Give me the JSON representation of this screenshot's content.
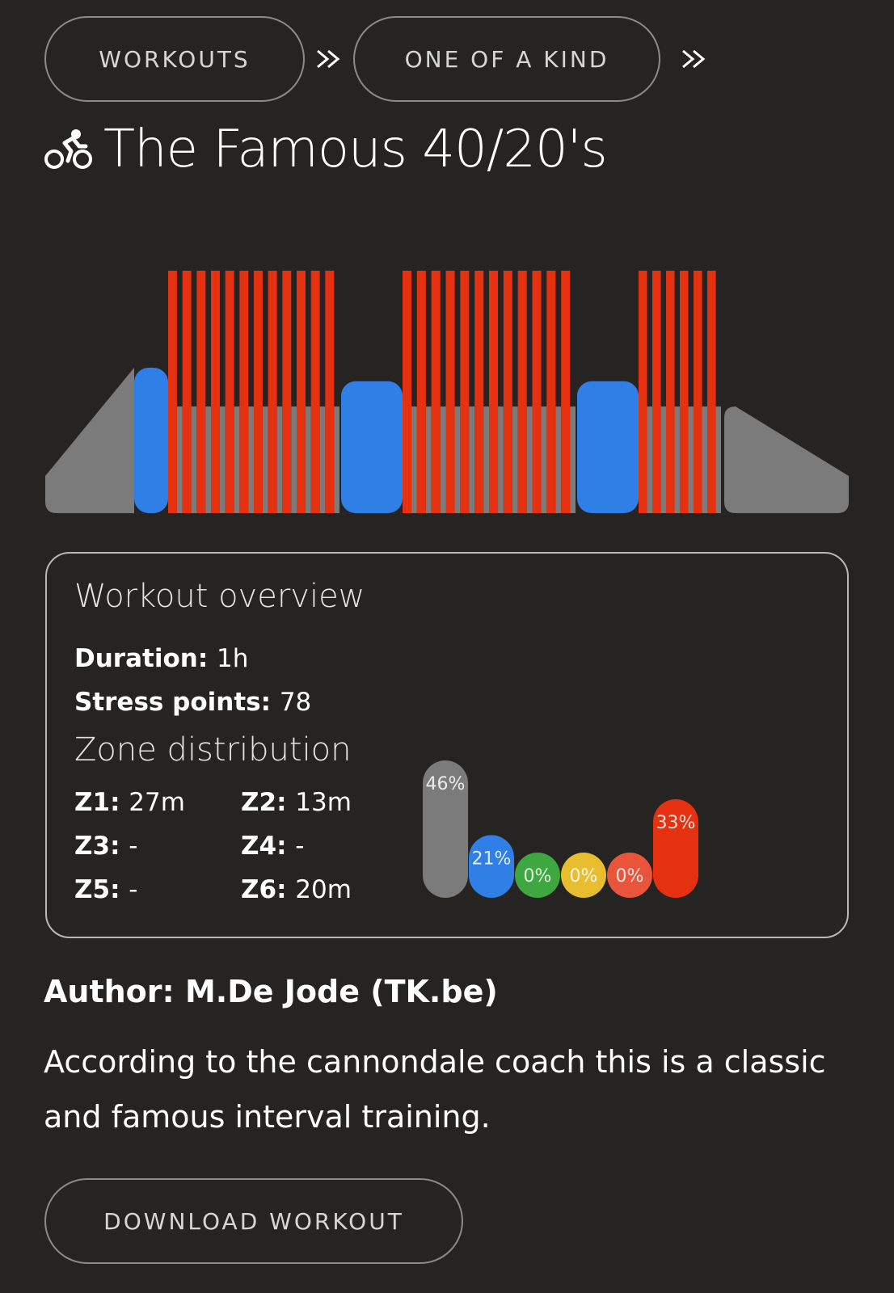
{
  "breadcrumb": {
    "items": [
      "WORKOUTS",
      "ONE OF A KIND"
    ],
    "separator_icon": "double-chevron-right-icon"
  },
  "title": {
    "icon": "cyclist-icon",
    "text": "The Famous 40/20's"
  },
  "profile": {
    "colors": {
      "z1": "#7b7b7b",
      "z2": "#2f7fe6",
      "z6": "#e5310f"
    },
    "segments": [
      {
        "type": "ramp",
        "zone": "z1",
        "from_power": 0.25,
        "to_power": 0.75
      },
      {
        "type": "block",
        "zone": "z2",
        "power": 0.75
      },
      {
        "type": "intervals",
        "repeats": 12,
        "on_zone": "z6",
        "on_power": 1.25,
        "off_zone": "z1",
        "off_power": 0.55
      },
      {
        "type": "block",
        "zone": "z2",
        "power": 0.68
      },
      {
        "type": "intervals",
        "repeats": 12,
        "on_zone": "z6",
        "on_power": 1.25,
        "off_zone": "z1",
        "off_power": 0.55
      },
      {
        "type": "block",
        "zone": "z2",
        "power": 0.68
      },
      {
        "type": "intervals",
        "repeats": 6,
        "on_zone": "z6",
        "on_power": 1.25,
        "off_zone": "z1",
        "off_power": 0.55
      },
      {
        "type": "ramp",
        "zone": "z1",
        "from_power": 0.55,
        "to_power": 0.25
      }
    ]
  },
  "overview": {
    "heading": "Workout overview",
    "duration_label": "Duration",
    "duration_value": "1h",
    "stress_label": "Stress points",
    "stress_value": "78",
    "zone_heading": "Zone distribution",
    "zones": [
      {
        "label": "Z1",
        "value": "27m"
      },
      {
        "label": "Z2",
        "value": "13m"
      },
      {
        "label": "Z3",
        "value": "-"
      },
      {
        "label": "Z4",
        "value": "-"
      },
      {
        "label": "Z5",
        "value": "-"
      },
      {
        "label": "Z6",
        "value": "20m"
      }
    ]
  },
  "chart_data": {
    "type": "bar",
    "categories": [
      "Z1",
      "Z2",
      "Z3",
      "Z4",
      "Z5",
      "Z6"
    ],
    "values": [
      46,
      21,
      0,
      0,
      0,
      33
    ],
    "labels": [
      "46%",
      "21%",
      "0%",
      "0%",
      "0%",
      "33%"
    ],
    "colors": [
      "#7b7b7b",
      "#2f7fe6",
      "#3fa73f",
      "#e8bd2e",
      "#e8553a",
      "#e5310f"
    ],
    "title": "",
    "xlabel": "",
    "ylabel": "",
    "ylim": [
      0,
      46
    ]
  },
  "author": "Author: M.De Jode (TK.be)",
  "description": "According to the cannondale coach this is a classic and famous interval training.",
  "download_label": "DOWNLOAD WORKOUT"
}
